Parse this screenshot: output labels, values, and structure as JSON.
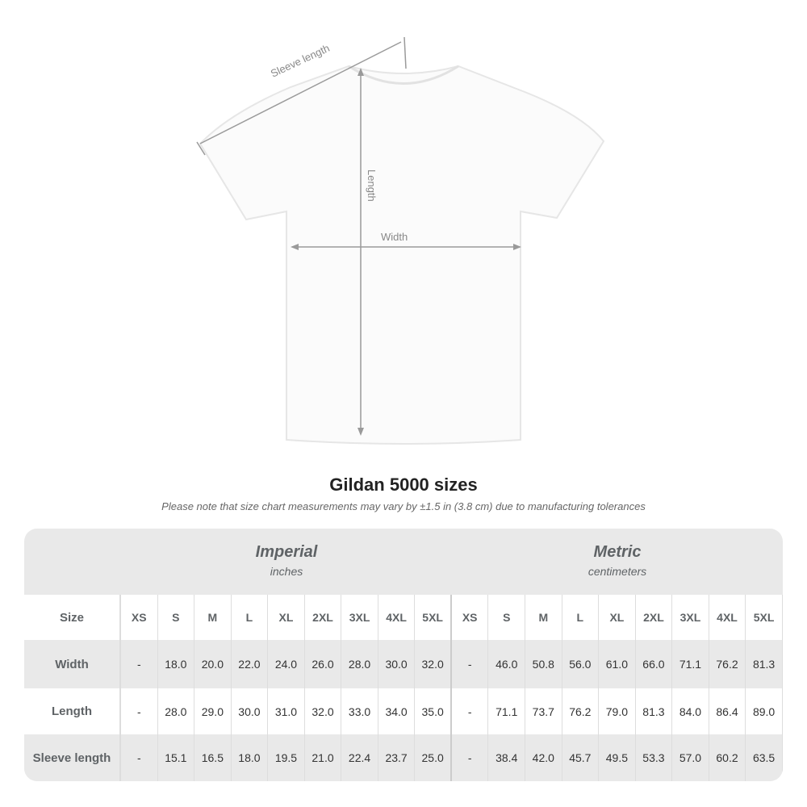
{
  "diagram": {
    "labels": {
      "sleeve": "Sleeve length",
      "length": "Length",
      "width": "Width"
    }
  },
  "title": "Gildan 5000 sizes",
  "note": "Please note that size chart measurements may vary by ±1.5 in (3.8 cm) due to manufacturing tolerances",
  "table": {
    "imperial": {
      "name": "Imperial",
      "unit": "inches"
    },
    "metric": {
      "name": "Metric",
      "unit": "centimeters"
    },
    "size_label": "Size",
    "sizes": [
      "XS",
      "S",
      "M",
      "L",
      "XL",
      "2XL",
      "3XL",
      "4XL",
      "5XL"
    ],
    "rows": [
      {
        "label": "Width",
        "imperial": [
          "-",
          "18.0",
          "20.0",
          "22.0",
          "24.0",
          "26.0",
          "28.0",
          "30.0",
          "32.0"
        ],
        "metric": [
          "-",
          "46.0",
          "50.8",
          "56.0",
          "61.0",
          "66.0",
          "71.1",
          "76.2",
          "81.3"
        ]
      },
      {
        "label": "Length",
        "imperial": [
          "-",
          "28.0",
          "29.0",
          "30.0",
          "31.0",
          "32.0",
          "33.0",
          "34.0",
          "35.0"
        ],
        "metric": [
          "-",
          "71.1",
          "73.7",
          "76.2",
          "79.0",
          "81.3",
          "84.0",
          "86.4",
          "89.0"
        ]
      },
      {
        "label": "Sleeve length",
        "imperial": [
          "-",
          "15.1",
          "16.5",
          "18.0",
          "19.5",
          "21.0",
          "22.4",
          "23.7",
          "25.0"
        ],
        "metric": [
          "-",
          "38.4",
          "42.0",
          "45.7",
          "49.5",
          "53.3",
          "57.0",
          "60.2",
          "63.5"
        ]
      }
    ]
  }
}
